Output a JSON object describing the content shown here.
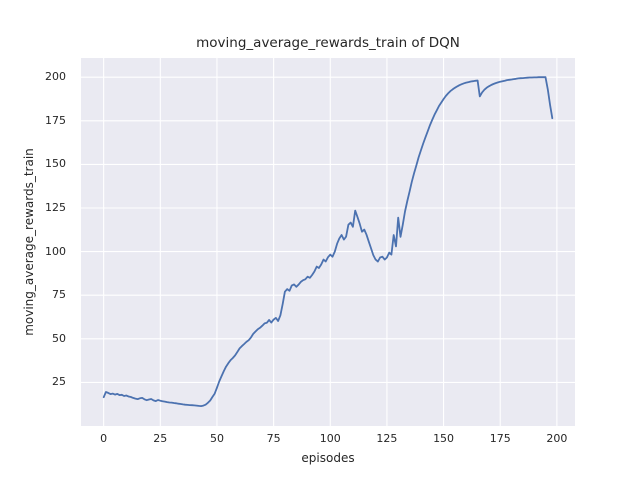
{
  "figure": {
    "title": "moving_average_rewards_train of DQN",
    "xlabel": "episodes",
    "ylabel": "moving_average_rewards_train"
  },
  "chart_data": {
    "type": "line",
    "title": "moving_average_rewards_train of DQN",
    "xlabel": "episodes",
    "ylabel": "moving_average_rewards_train",
    "x_ticks": [
      0,
      25,
      50,
      75,
      100,
      125,
      150,
      175,
      200
    ],
    "y_ticks": [
      25,
      50,
      75,
      100,
      125,
      150,
      175,
      200
    ],
    "xlim": [
      -10,
      208
    ],
    "ylim": [
      0,
      211
    ],
    "grid": true,
    "legend": "none",
    "style": {
      "figure_background": "#ffffff",
      "axes_background": "#eaeaf2",
      "grid_color": "#ffffff",
      "line_color": "#4c72b0",
      "text_color": "#262626"
    },
    "series": [
      {
        "name": "DQN",
        "x": [
          0,
          1,
          2,
          3,
          4,
          5,
          6,
          7,
          8,
          9,
          10,
          11,
          12,
          13,
          14,
          15,
          16,
          17,
          18,
          19,
          20,
          21,
          22,
          23,
          24,
          25,
          26,
          27,
          28,
          29,
          30,
          31,
          32,
          33,
          34,
          35,
          36,
          37,
          38,
          39,
          40,
          41,
          42,
          43,
          44,
          45,
          46,
          47,
          48,
          49,
          50,
          51,
          52,
          53,
          54,
          55,
          56,
          57,
          58,
          59,
          60,
          61,
          62,
          63,
          64,
          65,
          66,
          67,
          68,
          69,
          70,
          71,
          72,
          73,
          74,
          75,
          76,
          77,
          78,
          79,
          80,
          81,
          82,
          83,
          84,
          85,
          86,
          87,
          88,
          89,
          90,
          91,
          92,
          93,
          94,
          95,
          96,
          97,
          98,
          99,
          100,
          101,
          102,
          103,
          104,
          105,
          106,
          107,
          108,
          109,
          110,
          111,
          112,
          113,
          114,
          115,
          116,
          117,
          118,
          119,
          120,
          121,
          122,
          123,
          124,
          125,
          126,
          127,
          128,
          129,
          130,
          131,
          132,
          133,
          134,
          135,
          136,
          137,
          138,
          139,
          140,
          141,
          142,
          143,
          144,
          145,
          146,
          147,
          148,
          149,
          150,
          151,
          152,
          153,
          154,
          155,
          156,
          157,
          158,
          159,
          160,
          161,
          162,
          163,
          164,
          165,
          166,
          167,
          168,
          169,
          170,
          171,
          172,
          173,
          174,
          175,
          176,
          177,
          178,
          179,
          180,
          181,
          182,
          183,
          184,
          185,
          186,
          187,
          188,
          189,
          190,
          191,
          192,
          193,
          194,
          195,
          196,
          197,
          198
        ],
        "y": [
          16.5,
          19.5,
          19.0,
          18.3,
          18.6,
          18.0,
          18.4,
          17.7,
          17.9,
          17.2,
          17.5,
          16.9,
          16.6,
          16.1,
          15.7,
          15.4,
          15.9,
          16.1,
          15.3,
          14.8,
          15.2,
          15.5,
          14.7,
          14.3,
          14.9,
          14.5,
          14.2,
          14.0,
          13.7,
          13.5,
          13.4,
          13.2,
          13.0,
          12.8,
          12.6,
          12.4,
          12.2,
          12.1,
          12.0,
          11.9,
          11.8,
          11.7,
          11.5,
          11.4,
          11.7,
          12.2,
          13.3,
          14.6,
          16.6,
          18.6,
          22.0,
          25.5,
          28.5,
          31.5,
          34.0,
          36.0,
          37.8,
          39.0,
          40.5,
          42.5,
          44.5,
          45.8,
          47.0,
          48.2,
          49.2,
          50.8,
          52.8,
          54.2,
          55.5,
          56.3,
          57.5,
          58.8,
          59.2,
          60.8,
          59.3,
          61.0,
          62.0,
          60.2,
          63.5,
          70.0,
          77.0,
          78.5,
          77.5,
          80.5,
          81.2,
          79.8,
          81.0,
          82.6,
          83.6,
          84.1,
          85.6,
          85.0,
          86.6,
          88.6,
          91.4,
          90.6,
          92.6,
          95.4,
          94.3,
          96.8,
          98.3,
          97.1,
          100.0,
          104.5,
          107.5,
          109.5,
          106.9,
          108.6,
          115.4,
          116.6,
          114.2,
          123.5,
          119.8,
          116.0,
          111.4,
          112.6,
          109.7,
          105.7,
          101.8,
          98.0,
          95.4,
          94.3,
          96.6,
          97.1,
          95.4,
          96.6,
          99.4,
          98.3,
          109.5,
          103.0,
          119.5,
          108.5,
          115.5,
          123.0,
          129.0,
          134.5,
          140.0,
          145.0,
          149.5,
          154.0,
          158.0,
          162.0,
          165.5,
          169.0,
          172.5,
          175.5,
          178.5,
          181.0,
          183.5,
          185.5,
          187.5,
          189.2,
          190.7,
          192.0,
          193.0,
          193.9,
          194.7,
          195.4,
          196.0,
          196.5,
          196.9,
          197.2,
          197.5,
          197.7,
          197.9,
          198.1,
          189.0,
          191.3,
          192.8,
          193.9,
          194.8,
          195.5,
          196.1,
          196.6,
          197.0,
          197.4,
          197.7,
          198.0,
          198.3,
          198.5,
          198.7,
          198.9,
          199.1,
          199.3,
          199.4,
          199.5,
          199.6,
          199.7,
          199.8,
          199.8,
          199.9,
          199.9,
          200.0,
          200.0,
          200.0,
          200.0,
          193.0,
          184.0,
          176.5
        ]
      }
    ]
  }
}
